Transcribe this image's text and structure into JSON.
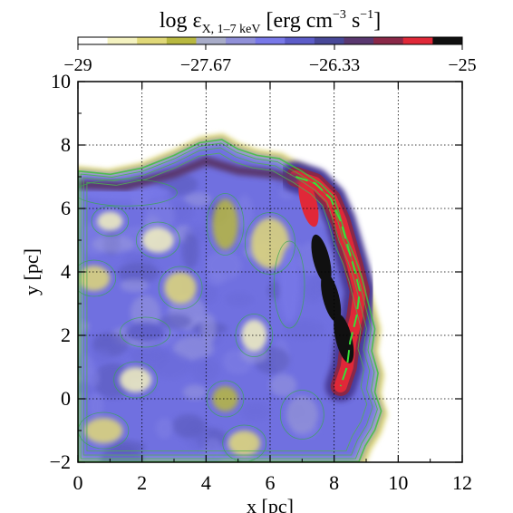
{
  "chart_data": {
    "type": "heatmap",
    "colorbar": {
      "title_main": "log ε",
      "title_sub": "X, 1–7 keV",
      "title_units_open": " [erg cm",
      "title_units_exp1": "−3",
      "title_units_mid": " s",
      "title_units_exp2": "−1",
      "title_units_close": "]",
      "range": [
        -29,
        -25
      ],
      "tick_labels": [
        "−29",
        "−27.67",
        "−26.33",
        "−25"
      ],
      "tick_values": [
        -29,
        -27.67,
        -26.33,
        -25
      ],
      "colors": [
        "#ffffff",
        "#f4f2c0",
        "#e0d878",
        "#b8b840",
        "#a8acc8",
        "#9090d8",
        "#7878e8",
        "#5c5cc8",
        "#484898",
        "#5a3870",
        "#8a2848",
        "#e02838",
        "#101010"
      ]
    },
    "xaxis": {
      "label": "x [pc]",
      "range": [
        0,
        12
      ],
      "tick_values": [
        0,
        2,
        4,
        6,
        8,
        10,
        12
      ],
      "tick_labels": [
        "0",
        "2",
        "4",
        "6",
        "8",
        "10",
        "12"
      ]
    },
    "yaxis": {
      "label": "y [pc]",
      "range": [
        -2,
        10
      ],
      "tick_values": [
        -2,
        0,
        2,
        4,
        6,
        8,
        10
      ],
      "tick_labels": [
        "−2",
        "0",
        "2",
        "4",
        "6",
        "8",
        "10"
      ]
    },
    "grid": true,
    "emission_region": {
      "outline": [
        [
          0,
          7.2
        ],
        [
          1,
          7.1
        ],
        [
          2,
          7.3
        ],
        [
          3,
          7.7
        ],
        [
          3.8,
          8.1
        ],
        [
          4.5,
          8.2
        ],
        [
          5.0,
          7.9
        ],
        [
          5.6,
          7.7
        ],
        [
          6.3,
          7.6
        ],
        [
          7.0,
          7.2
        ],
        [
          7.6,
          6.8
        ],
        [
          8.0,
          6.4
        ],
        [
          8.2,
          5.8
        ],
        [
          8.4,
          5.1
        ],
        [
          8.7,
          4.4
        ],
        [
          8.9,
          3.8
        ],
        [
          9.1,
          3.0
        ],
        [
          9.3,
          2.2
        ],
        [
          9.2,
          1.5
        ],
        [
          9.4,
          0.8
        ],
        [
          9.3,
          0.2
        ],
        [
          9.5,
          -0.4
        ],
        [
          9.3,
          -1.0
        ],
        [
          9.0,
          -1.5
        ],
        [
          8.8,
          -2.0
        ],
        [
          0,
          -2.0
        ]
      ],
      "bright_rim": [
        [
          6.8,
          7.0
        ],
        [
          7.4,
          6.8
        ],
        [
          7.9,
          6.3
        ],
        [
          8.2,
          5.6
        ],
        [
          8.4,
          4.9
        ],
        [
          8.6,
          4.2
        ],
        [
          8.8,
          3.4
        ],
        [
          8.7,
          2.6
        ],
        [
          8.5,
          1.8
        ],
        [
          8.4,
          1.0
        ],
        [
          8.2,
          0.4
        ]
      ],
      "core_patches": [
        {
          "cx": 7.6,
          "cy": 4.4,
          "level": -25.0
        },
        {
          "cx": 7.9,
          "cy": 3.2,
          "level": -25.0
        },
        {
          "cx": 8.3,
          "cy": 1.9,
          "level": -25.2
        },
        {
          "cx": 7.2,
          "cy": 6.2,
          "level": -25.4
        }
      ],
      "interior_blobs": [
        {
          "cx": 0.5,
          "cy": 3.8,
          "rx": 0.5,
          "ry": 0.4,
          "level": -28.3
        },
        {
          "cx": 1.0,
          "cy": 5.6,
          "rx": 0.4,
          "ry": 0.3,
          "level": -28.6
        },
        {
          "cx": 3.2,
          "cy": 3.5,
          "rx": 0.5,
          "ry": 0.5,
          "level": -28.3
        },
        {
          "cx": 4.6,
          "cy": 5.5,
          "rx": 0.4,
          "ry": 0.8,
          "level": -28.0
        },
        {
          "cx": 6.0,
          "cy": 4.9,
          "rx": 0.6,
          "ry": 0.8,
          "level": -28.3
        },
        {
          "cx": 2.5,
          "cy": 5.0,
          "rx": 0.5,
          "ry": 0.4,
          "level": -28.6
        },
        {
          "cx": 0.8,
          "cy": -1.0,
          "rx": 0.6,
          "ry": 0.4,
          "level": -28.3
        },
        {
          "cx": 4.6,
          "cy": 0.0,
          "rx": 0.4,
          "ry": 0.4,
          "level": -28.0
        },
        {
          "cx": 5.2,
          "cy": -1.4,
          "rx": 0.5,
          "ry": 0.4,
          "level": -28.3
        },
        {
          "cx": 5.5,
          "cy": 2.0,
          "rx": 0.4,
          "ry": 0.5,
          "level": -28.6
        },
        {
          "cx": 1.8,
          "cy": 0.6,
          "rx": 0.5,
          "ry": 0.4,
          "level": -28.6
        },
        {
          "cx": 7.0,
          "cy": -0.5,
          "rx": 0.5,
          "ry": 0.6,
          "level": -27.4
        },
        {
          "cx": 2.1,
          "cy": 2.1,
          "rx": 0.6,
          "ry": 0.3,
          "level": -26.6
        },
        {
          "cx": 1.5,
          "cy": 6.5,
          "rx": 1.4,
          "ry": 0.25,
          "level": -26.9
        },
        {
          "cx": 6.6,
          "cy": 3.6,
          "rx": 0.3,
          "ry": 1.2,
          "level": -26.9
        }
      ]
    }
  }
}
